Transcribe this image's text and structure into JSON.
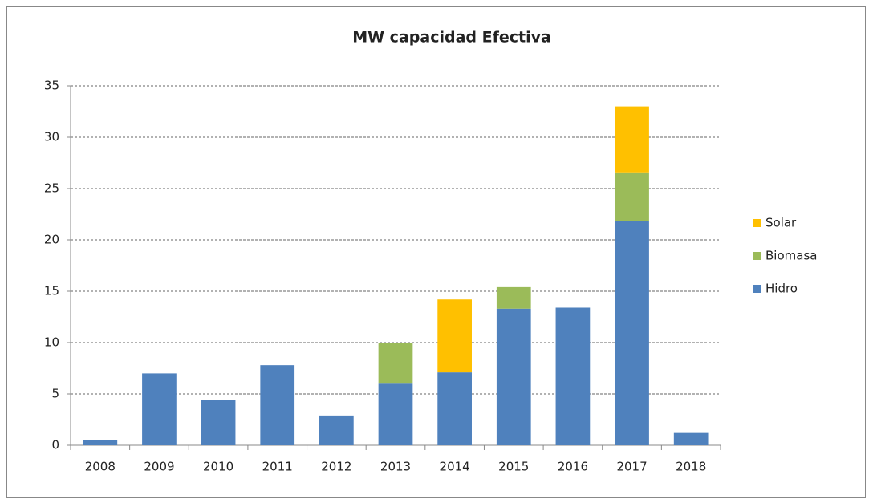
{
  "chart_data": {
    "type": "stacked_bar",
    "title": "MW capacidad Efectiva",
    "categories": [
      "2008",
      "2009",
      "2010",
      "2011",
      "2012",
      "2013",
      "2014",
      "2015",
      "2016",
      "2017",
      "2018"
    ],
    "series": [
      {
        "name": "Hidro",
        "color": "#4f81bd",
        "values": [
          0.5,
          7,
          4.4,
          7.8,
          2.9,
          6,
          7.1,
          13.3,
          13.4,
          21.8,
          1.2
        ]
      },
      {
        "name": "Biomasa",
        "color": "#9bbb59",
        "values": [
          0,
          0,
          0,
          0,
          0,
          4,
          0,
          2.1,
          0,
          4.7,
          0
        ]
      },
      {
        "name": "Solar",
        "color": "#ffc000",
        "values": [
          0,
          0,
          0,
          0,
          0,
          0,
          7.1,
          0,
          0,
          6.5,
          0
        ]
      }
    ],
    "ylim": [
      0,
      35
    ],
    "yticks": [
      0,
      5,
      10,
      15,
      20,
      25,
      30,
      35
    ],
    "grid": true,
    "legend": "right"
  }
}
